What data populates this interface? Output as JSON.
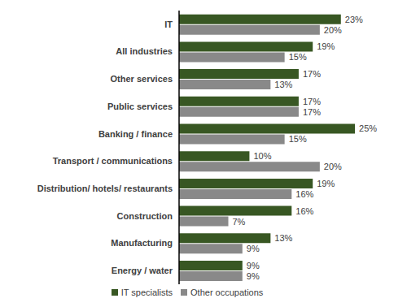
{
  "chart_data": {
    "type": "bar",
    "orientation": "horizontal",
    "categories": [
      "IT",
      "All industries",
      "Other services",
      "Public services",
      "Banking / finance",
      "Transport / communications",
      "Distribution/ hotels/ restaurants",
      "Construction",
      "Manufacturing",
      "Energy / water"
    ],
    "series": [
      {
        "name": "IT specialists",
        "color": "#385723",
        "values": [
          23,
          19,
          17,
          17,
          25,
          10,
          19,
          16,
          13,
          9
        ],
        "value_labels": [
          "23%",
          "19%",
          "17%",
          "17%",
          "25%",
          "10%",
          "19%",
          "16%",
          "13%",
          "9%"
        ]
      },
      {
        "name": "Other occupations",
        "color": "#898989",
        "values": [
          20,
          15,
          13,
          17,
          15,
          20,
          16,
          7,
          9,
          9
        ],
        "value_labels": [
          "20%",
          "15%",
          "13%",
          "17%",
          "15%",
          "20%",
          "16%",
          "7%",
          "9%",
          "9%"
        ]
      }
    ],
    "xlim": [
      0,
      28
    ],
    "data_labels": true,
    "legend": "bottom",
    "tick_labels": "y",
    "grid": false
  }
}
